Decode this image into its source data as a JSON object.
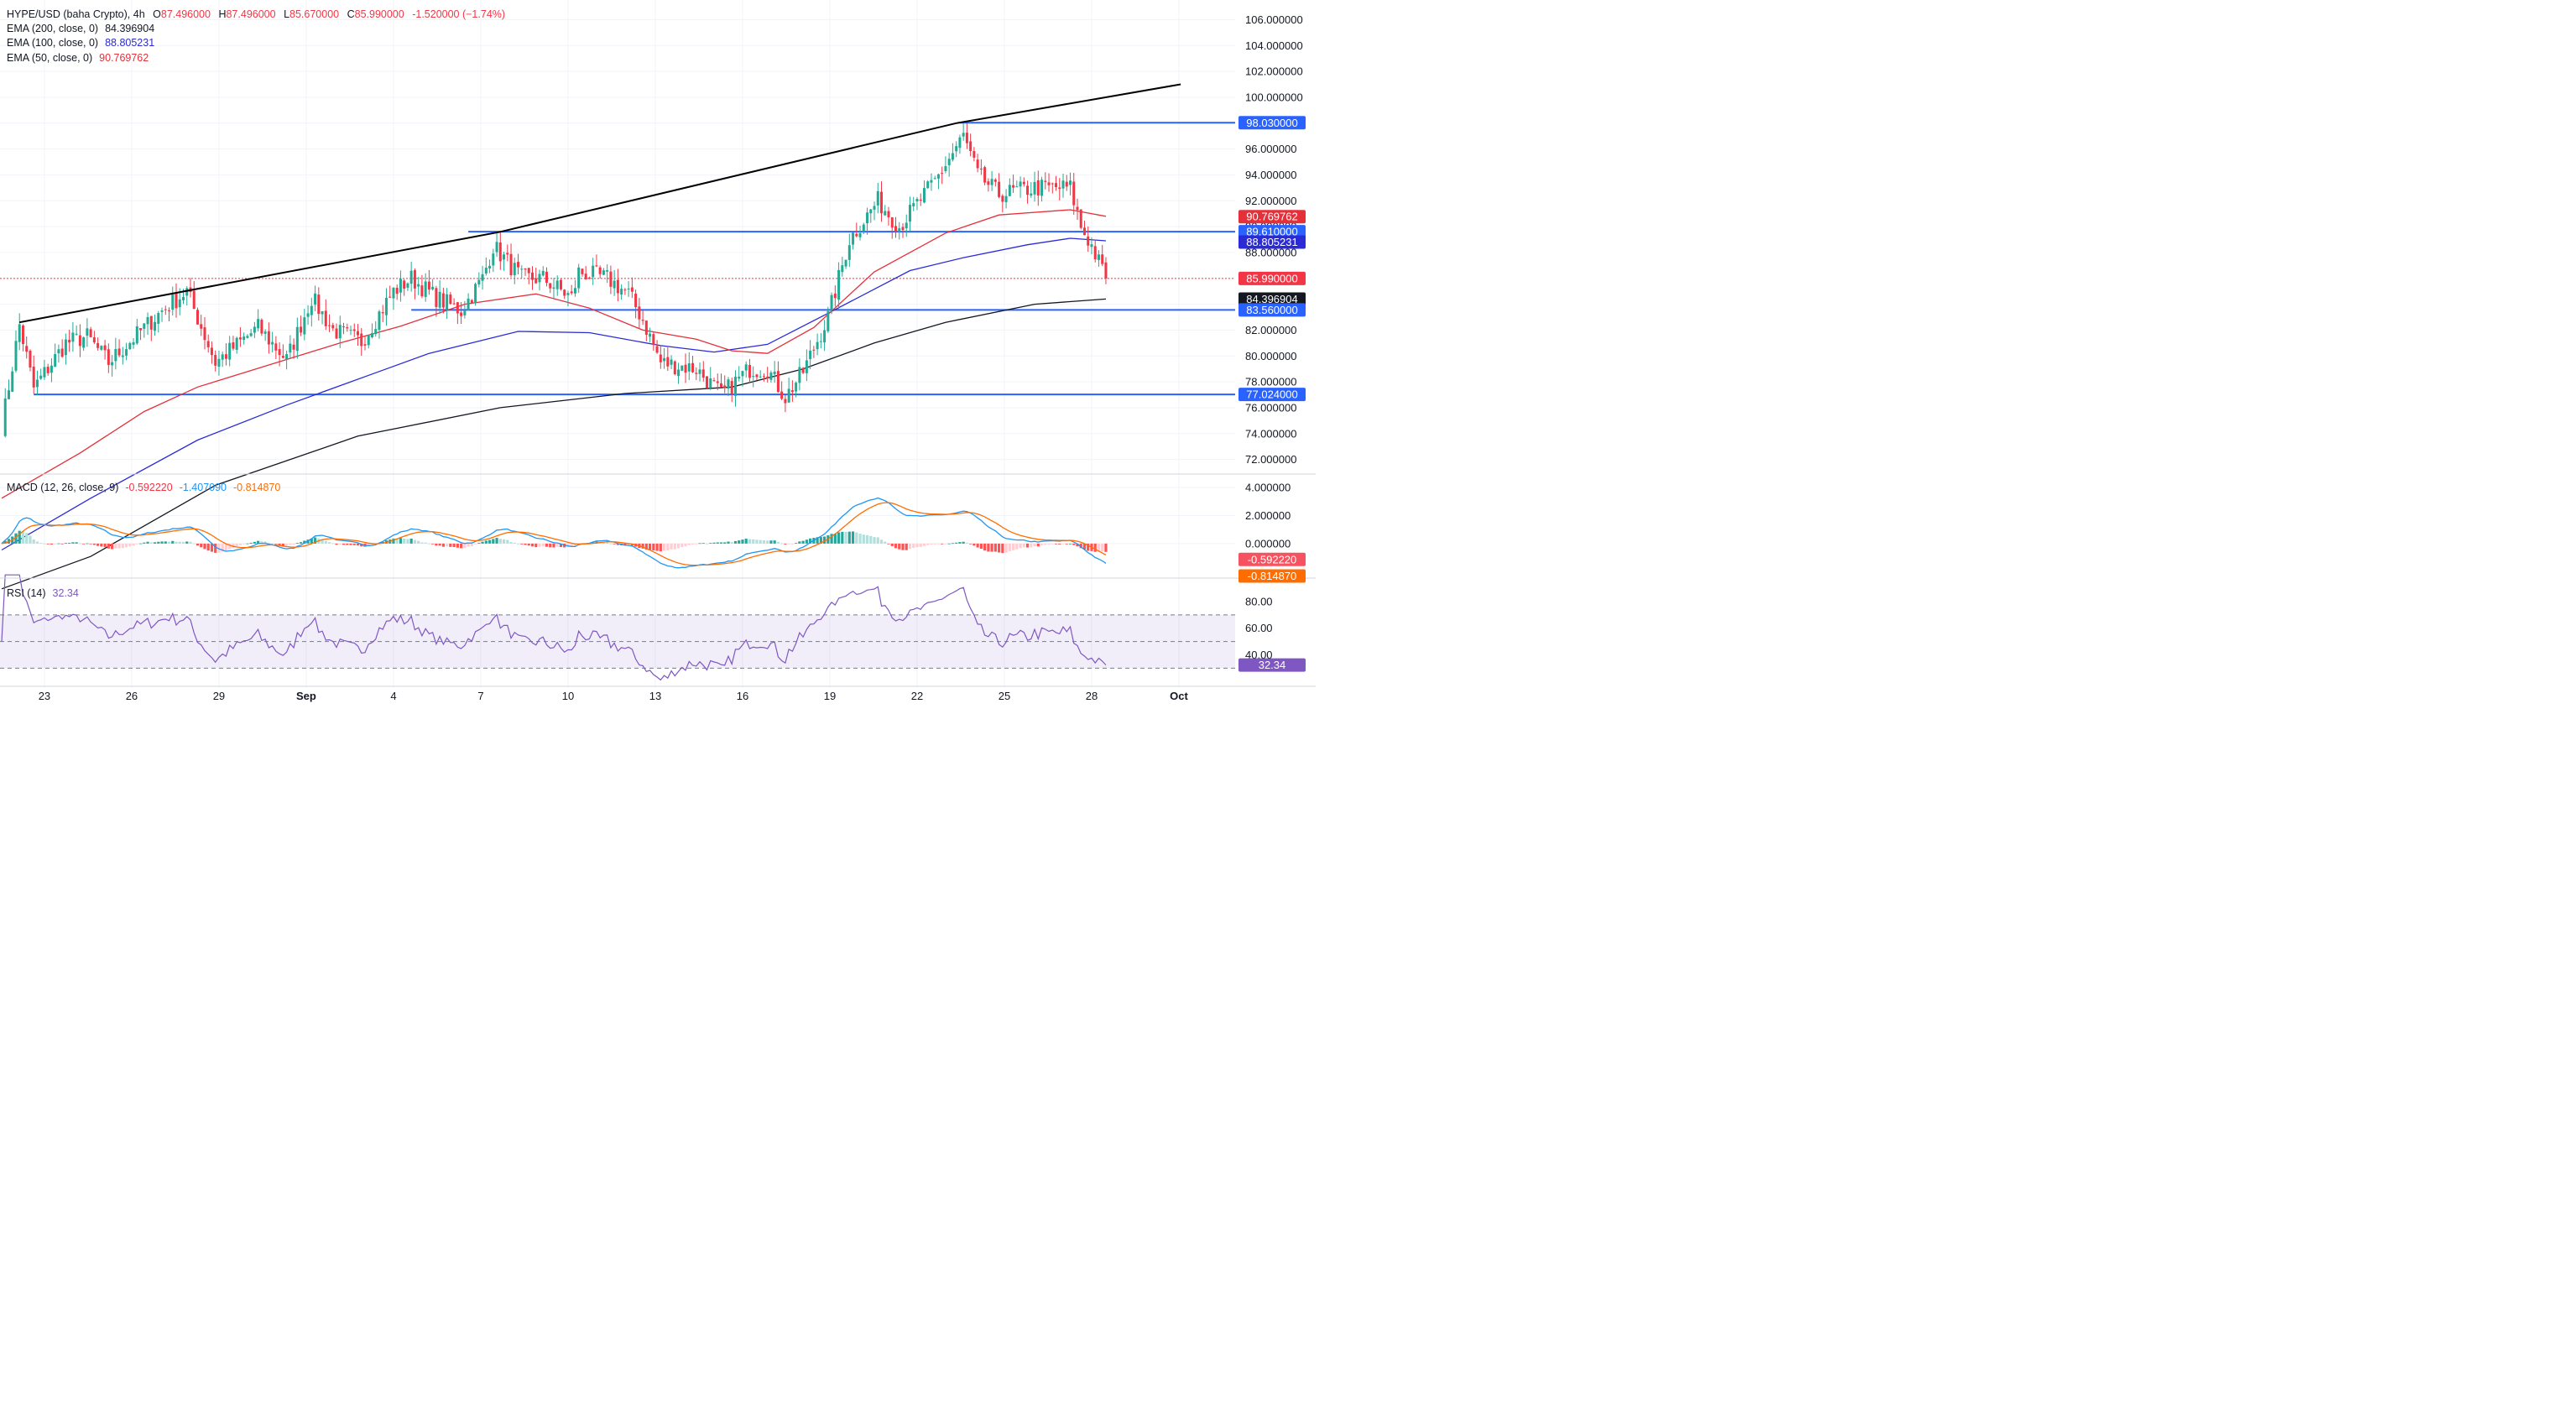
{
  "legend": {
    "symbol": "HYPE/USD (baha Crypto), 4h",
    "ohlc": [
      {
        "key": "O",
        "value": "87.496000"
      },
      {
        "key": "H",
        "value": "87.496000"
      },
      {
        "key": "L",
        "value": "85.670000"
      },
      {
        "key": "C",
        "value": "85.990000"
      }
    ],
    "change": "-1.520000 (−1.74%)",
    "ema": [
      {
        "label": "EMA (200, close, 0)",
        "value": "84.396904",
        "color": "#131722"
      },
      {
        "label": "EMA (100, close, 0)",
        "value": "88.805231",
        "color": "#2b2bd6"
      },
      {
        "label": "EMA (50, close, 0)",
        "value": "90.769762",
        "color": "#e5303a"
      }
    ]
  },
  "colors": {
    "up": "#22ab94",
    "down": "#f23645",
    "level": "#2962ff",
    "trend": "#000000",
    "macd": "#2196f3",
    "signal": "#ff6d00",
    "rsi": "#7e57c2"
  },
  "price_axis": {
    "ticks": [
      "106.000000",
      "104.000000",
      "102.000000",
      "100.000000",
      "98.000000",
      "96.000000",
      "94.000000",
      "92.000000",
      "90.000000",
      "88.000000",
      "86.000000",
      "84.000000",
      "82.000000",
      "80.000000",
      "78.000000",
      "76.000000",
      "74.000000",
      "72.000000"
    ],
    "range": [
      71,
      107
    ],
    "badges": [
      {
        "value": 98.03,
        "label": "98.030000",
        "bg": "#2962ff",
        "fg": "#ffffff"
      },
      {
        "value": 90.769762,
        "label": "90.769762",
        "bg": "#e5303a",
        "fg": "#ffffff"
      },
      {
        "value": 89.61,
        "label": "89.610000",
        "bg": "#2962ff",
        "fg": "#ffffff"
      },
      {
        "value": 88.805231,
        "label": "88.805231",
        "bg": "#2b2bd6",
        "fg": "#ffffff"
      },
      {
        "value": 85.99,
        "label": "85.990000",
        "bg": "#f23645",
        "fg": "#ffffff"
      },
      {
        "value": 84.396904,
        "label": "84.396904",
        "bg": "#131722",
        "fg": "#ffffff"
      },
      {
        "value": 83.56,
        "label": "83.560000",
        "bg": "#2962ff",
        "fg": "#ffffff"
      },
      {
        "value": 77.024,
        "label": "77.024000",
        "bg": "#2962ff",
        "fg": "#ffffff"
      }
    ]
  },
  "macd_panel": {
    "label": "MACD (12, 26, close, 9)",
    "values": [
      {
        "text": "-0.592220",
        "color": "#f23645"
      },
      {
        "text": "-1.407090",
        "color": "#2196f3"
      },
      {
        "text": "-0.814870",
        "color": "#ff6d00"
      }
    ],
    "ticks": [
      "4.000000",
      "2.000000",
      "0.000000"
    ],
    "range": [
      -2.4,
      4.9
    ],
    "badges": [
      {
        "value": -0.59222,
        "label": "-0.592220",
        "bg": "#f7525f",
        "fg": "#ffffff"
      },
      {
        "value": -1.40709,
        "label": "-1.407090",
        "bg": "#2196f3",
        "fg": "#ffffff"
      },
      {
        "value": -0.81487,
        "label": "-0.814870",
        "bg": "#ff6d00",
        "fg": "#ffffff"
      }
    ]
  },
  "rsi_panel": {
    "label": "RSI (14)",
    "value": "32.34",
    "ticks": [
      "80.00",
      "60.00",
      "40.00"
    ],
    "range": [
      17,
      97
    ],
    "badge": {
      "value": 32.34,
      "label": "32.34",
      "bg": "#7e57c2",
      "fg": "#ffffff"
    }
  },
  "time_axis": {
    "labels": [
      "23",
      "26",
      "29",
      "Sep",
      "4",
      "7",
      "10",
      "13",
      "16",
      "19",
      "22",
      "25",
      "28",
      "Oct"
    ]
  },
  "chart_data": {
    "type": "candlestick",
    "symbol": "HYPE/USD",
    "interval": "4h",
    "x_range": [
      "Aug 21",
      "Oct 1"
    ],
    "y_range": [
      71,
      107
    ],
    "last_price": 85.99,
    "overlays": [
      {
        "name": "EMA (200, close, 0)",
        "last": 84.396904,
        "points": [
          [
            0,
            62.0
          ],
          [
            25,
            64.5
          ],
          [
            60,
            70.0
          ],
          [
            100,
            73.8
          ],
          [
            140,
            76.0
          ],
          [
            175,
            77.1
          ],
          [
            205,
            77.6
          ],
          [
            225,
            79.0
          ],
          [
            245,
            81.0
          ],
          [
            265,
            82.6
          ],
          [
            290,
            84.0
          ],
          [
            310,
            84.4
          ]
        ]
      },
      {
        "name": "EMA (100, close, 0)",
        "last": 88.805231,
        "points": [
          [
            0,
            65.0
          ],
          [
            25,
            69.0
          ],
          [
            55,
            73.5
          ],
          [
            80,
            76.2
          ],
          [
            105,
            78.7
          ],
          [
            120,
            80.2
          ],
          [
            145,
            81.9
          ],
          [
            165,
            81.8
          ],
          [
            185,
            80.8
          ],
          [
            200,
            80.3
          ],
          [
            215,
            80.9
          ],
          [
            232,
            83.3
          ],
          [
            255,
            86.6
          ],
          [
            270,
            87.6
          ],
          [
            288,
            88.6
          ],
          [
            300,
            89.1
          ],
          [
            310,
            88.9
          ]
        ]
      },
      {
        "name": "EMA (50, close, 0)",
        "last": 90.769762,
        "points": [
          [
            0,
            69.0
          ],
          [
            22,
            72.5
          ],
          [
            40,
            75.7
          ],
          [
            55,
            77.6
          ],
          [
            75,
            79.3
          ],
          [
            95,
            81.0
          ],
          [
            112,
            82.3
          ],
          [
            130,
            84.0
          ],
          [
            150,
            84.8
          ],
          [
            165,
            83.7
          ],
          [
            180,
            82.0
          ],
          [
            195,
            81.3
          ],
          [
            205,
            80.4
          ],
          [
            215,
            80.2
          ],
          [
            228,
            82.2
          ],
          [
            245,
            86.5
          ],
          [
            265,
            89.5
          ],
          [
            280,
            90.9
          ],
          [
            300,
            91.3
          ],
          [
            310,
            90.8
          ]
        ]
      }
    ],
    "trendline": [
      [
        5,
        82.6
      ],
      [
        140,
        89.6
      ],
      [
        268,
        98.0
      ],
      [
        331,
        101.0
      ]
    ],
    "levels": [
      98.03,
      89.61,
      83.56,
      77.024
    ],
    "anchors": [
      [
        0,
        74.5
      ],
      [
        5,
        82.4
      ],
      [
        9,
        77.5
      ],
      [
        18,
        81.0
      ],
      [
        24,
        81.5
      ],
      [
        30,
        79.5
      ],
      [
        45,
        83.5
      ],
      [
        52,
        85.0
      ],
      [
        60,
        79.5
      ],
      [
        72,
        82.2
      ],
      [
        80,
        79.7
      ],
      [
        87,
        84.5
      ],
      [
        93,
        82.0
      ],
      [
        101,
        81.1
      ],
      [
        110,
        85.0
      ],
      [
        115,
        86.0
      ],
      [
        122,
        84.5
      ],
      [
        129,
        83.5
      ],
      [
        135,
        86.0
      ],
      [
        138,
        88.5
      ],
      [
        146,
        86.0
      ],
      [
        152,
        86.0
      ],
      [
        160,
        84.5
      ],
      [
        162,
        86.5
      ],
      [
        170,
        86.0
      ],
      [
        176,
        84.8
      ],
      [
        180,
        82.8
      ],
      [
        185,
        79.5
      ],
      [
        195,
        79.0
      ],
      [
        202,
        77.0
      ],
      [
        210,
        79.0
      ],
      [
        215,
        79.0
      ],
      [
        220,
        76.8
      ],
      [
        225,
        78.8
      ],
      [
        232,
        83.0
      ],
      [
        238,
        89.0
      ],
      [
        246,
        92.0
      ],
      [
        252,
        90.0
      ],
      [
        262,
        93.5
      ],
      [
        270,
        97.0
      ],
      [
        274,
        94.0
      ],
      [
        280,
        92.5
      ],
      [
        290,
        93.0
      ],
      [
        300,
        93.0
      ],
      [
        303,
        90.0
      ],
      [
        306,
        88.5
      ],
      [
        310,
        86.0
      ]
    ],
    "macd": {
      "label": "MACD (12, 26, close, 9)",
      "macd": -1.40709,
      "signal": -0.81487,
      "histogram": -0.59222
    },
    "rsi": {
      "label": "RSI (14)",
      "value": 32.34,
      "levels": [
        70,
        50,
        30
      ]
    }
  }
}
